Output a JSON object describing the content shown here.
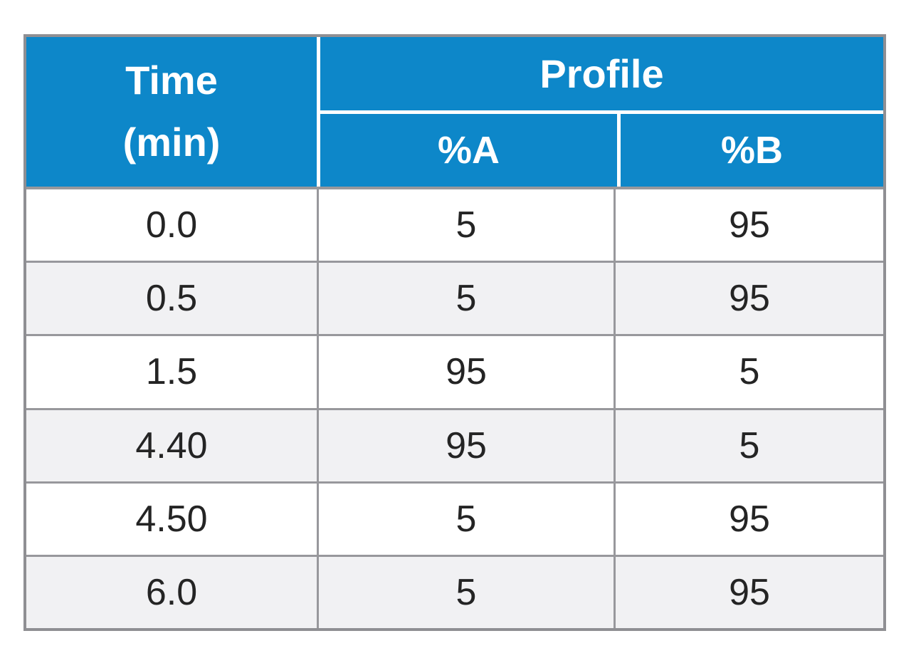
{
  "table": {
    "header": {
      "time_label": "Time",
      "time_unit": "(min)",
      "profile_label": "Profile",
      "col_a": "%A",
      "col_b": "%B"
    },
    "rows": [
      {
        "time": "0.0",
        "a": "5",
        "b": "95"
      },
      {
        "time": "0.5",
        "a": "5",
        "b": "95"
      },
      {
        "time": "1.5",
        "a": "95",
        "b": "5"
      },
      {
        "time": "4.40",
        "a": "95",
        "b": "5"
      },
      {
        "time": "4.50",
        "a": "5",
        "b": "95"
      },
      {
        "time": "6.0",
        "a": "5",
        "b": "95"
      }
    ],
    "colors": {
      "header_bg": "#0d87c9",
      "header_text": "#ffffff",
      "row_alt_bg": "#f1f1f3",
      "border": "#98989c",
      "body_text": "#242424"
    }
  }
}
